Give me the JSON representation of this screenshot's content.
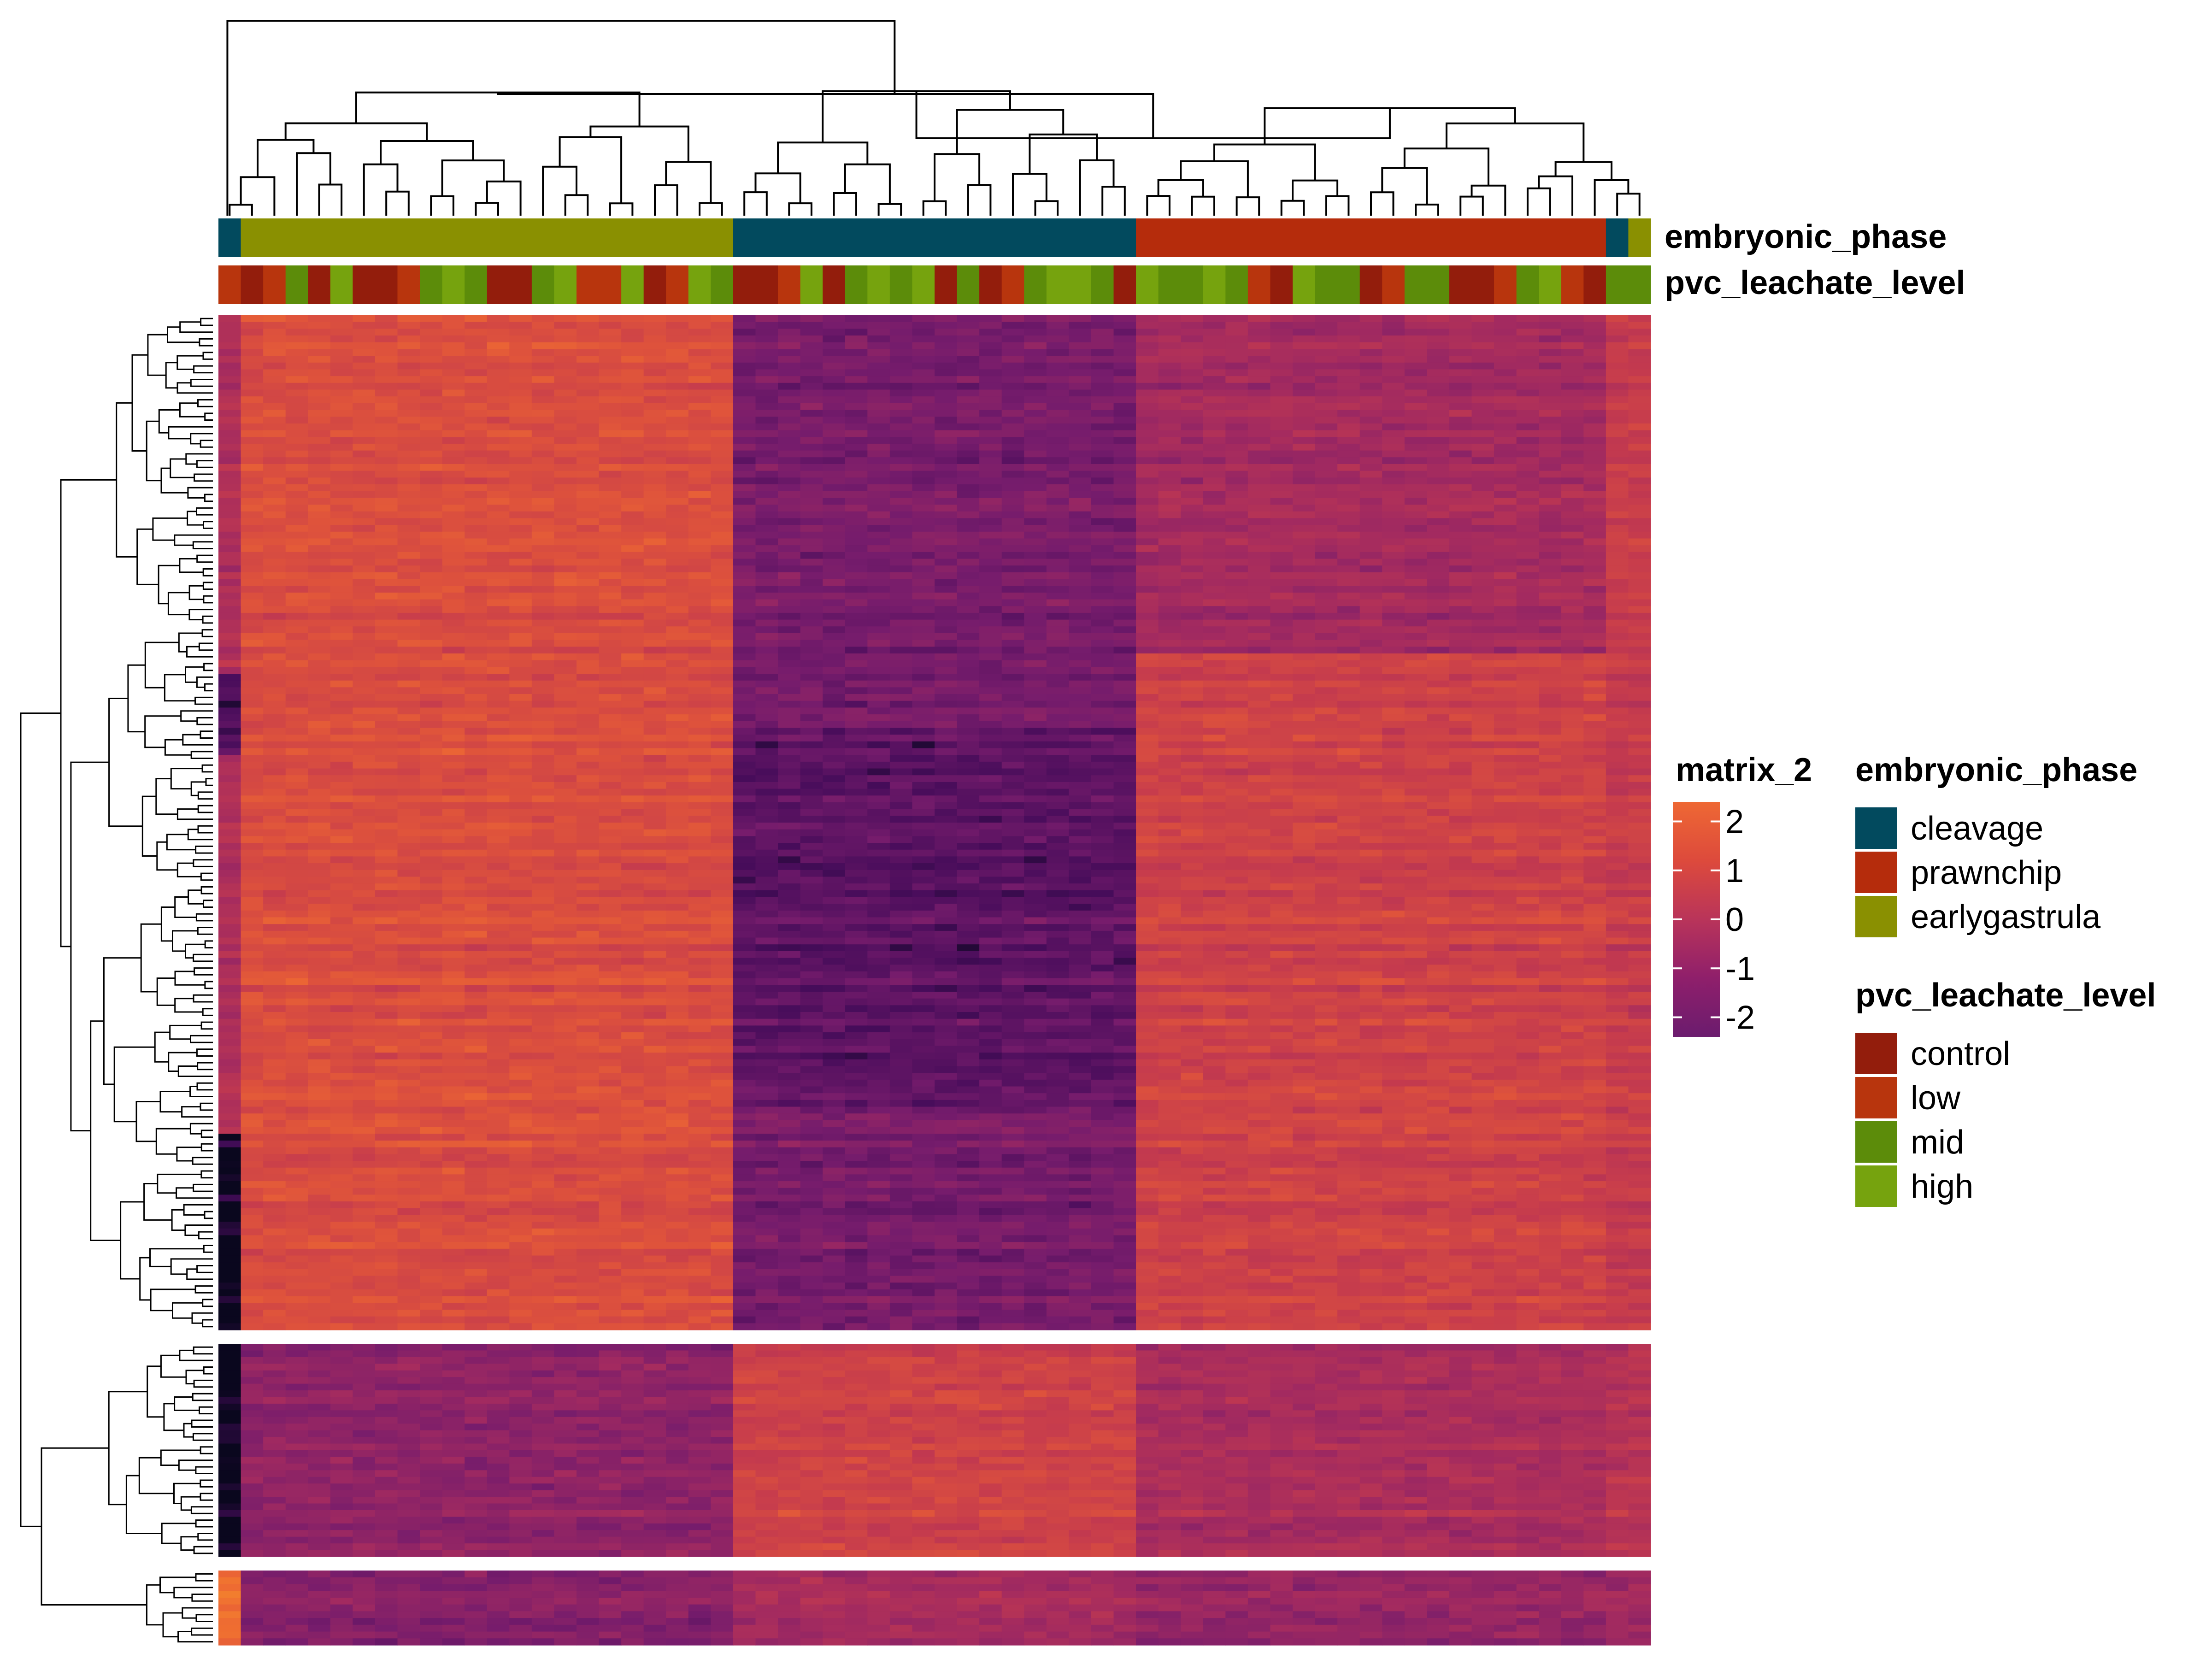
{
  "chart_data": {
    "type": "heatmap",
    "title": "",
    "xlabel": "",
    "ylabel": "",
    "n_columns": 64,
    "row_slices": [
      150,
      32,
      11
    ],
    "column_annotations": [
      {
        "name": "embryonic_phase",
        "colors": {
          "cleavage": "#024A5E",
          "prawnchip": "#B52C0C",
          "earlygastrula": "#8A9001"
        },
        "blocks": [
          {
            "level": "cleavage",
            "count": 1
          },
          {
            "level": "earlygastrula",
            "count": 22
          },
          {
            "level": "cleavage",
            "count": 18
          },
          {
            "level": "prawnchip",
            "count": 21
          },
          {
            "level": "cleavage",
            "count": 1
          },
          {
            "level": "earlygastrula",
            "count": 1
          }
        ]
      },
      {
        "name": "pvc_leachate_level",
        "colors": {
          "control": "#931D0C",
          "low": "#B8350D",
          "mid": "#5C8C0A",
          "high": "#76A30E"
        },
        "values": [
          "low",
          "control",
          "low",
          "mid",
          "control",
          "high",
          "control",
          "control",
          "low",
          "mid",
          "high",
          "mid",
          "control",
          "control",
          "mid",
          "high",
          "low",
          "low",
          "high",
          "control",
          "low",
          "high",
          "mid",
          "control",
          "control",
          "low",
          "high",
          "control",
          "mid",
          "high",
          "mid",
          "high",
          "control",
          "mid",
          "control",
          "low",
          "mid",
          "high",
          "high",
          "mid",
          "control",
          "high",
          "mid",
          "mid",
          "high",
          "mid",
          "low",
          "control",
          "high",
          "mid",
          "mid",
          "control",
          "low",
          "mid",
          "mid",
          "control",
          "control",
          "low",
          "mid",
          "high",
          "low",
          "control",
          "mid",
          "mid"
        ]
      }
    ],
    "color_scale": {
      "name": "matrix_2",
      "breaks": [
        2,
        1,
        0,
        -1,
        -2
      ],
      "tick_labels": [
        "2",
        "1",
        "0",
        "-1",
        "-2"
      ],
      "range": [
        -2.4,
        2.4
      ]
    },
    "legends": [
      {
        "title": "embryonic_phase",
        "items": [
          {
            "label": "cleavage",
            "color": "#024A5E"
          },
          {
            "label": "prawnchip",
            "color": "#B52C0C"
          },
          {
            "label": "earlygastrula",
            "color": "#8A9001"
          }
        ]
      },
      {
        "title": "pvc_leachate_level",
        "items": [
          {
            "label": "control",
            "color": "#931D0C"
          },
          {
            "label": "low",
            "color": "#B8350D"
          },
          {
            "label": "mid",
            "color": "#5C8C0A"
          },
          {
            "label": "high",
            "color": "#76A30E"
          }
        ]
      }
    ],
    "legend_position": "right",
    "grid": false
  }
}
